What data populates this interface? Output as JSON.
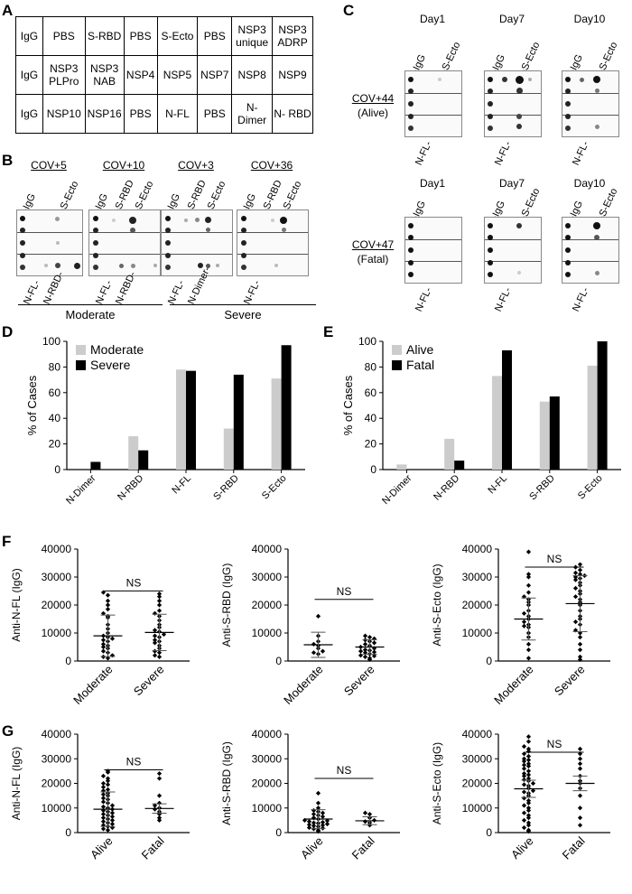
{
  "panels": {
    "a": "A",
    "b": "B",
    "c": "C",
    "d": "D",
    "e": "E",
    "f": "F",
    "g": "G"
  },
  "table_a": {
    "rows": [
      [
        "IgG",
        "PBS",
        "S-RBD",
        "PBS",
        "S-Ecto",
        "PBS",
        "NSP3 unique",
        "NSP3 ADRP"
      ],
      [
        "IgG",
        "NSP3 PLPro",
        "NSP3 NAB",
        "NSP4",
        "NSP5",
        "NSP7",
        "NSP8",
        "NSP9"
      ],
      [
        "IgG",
        "NSP10",
        "NSP16",
        "PBS",
        "N-FL",
        "PBS",
        "N- Dimer",
        "N- RBD"
      ]
    ]
  },
  "panel_b": {
    "blots": [
      {
        "title": "COV+5",
        "top_labels": [
          "-IgG",
          "-S-Ecto"
        ],
        "bottom_labels": [
          "N-FL-",
          "N-RBD-"
        ]
      },
      {
        "title": "COV+10",
        "top_labels": [
          "-IgG",
          "-S-RBD",
          "-S-Ecto"
        ],
        "bottom_labels": [
          "N-FL-",
          "N-RBD-"
        ]
      },
      {
        "title": "COV+3",
        "top_labels": [
          "-IgG",
          "-S-RBD",
          "-S-Ecto"
        ],
        "bottom_labels": [
          "N-FL-",
          "N-Dimer-"
        ]
      },
      {
        "title": "COV+36",
        "top_labels": [
          "-IgG",
          "-S-RBD",
          "-S-Ecto"
        ],
        "bottom_labels": [
          "N-FL-"
        ]
      }
    ],
    "groups": [
      "Moderate",
      "Severe"
    ]
  },
  "panel_c": {
    "days": [
      "Day1",
      "Day7",
      "Day10"
    ],
    "patients": [
      {
        "name": "COV+44",
        "status": "(Alive)",
        "top_labels": [
          [
            "-IgG",
            "-S-Ecto"
          ],
          [
            "-IgG",
            "-S-Ecto"
          ],
          [
            "-IgG",
            "-S-Ecto"
          ]
        ],
        "bottom_label": "N-FL-"
      },
      {
        "name": "COV+47",
        "status": "(Fatal)",
        "top_labels": [
          [
            "-IgG"
          ],
          [
            "-IgG",
            "-S-Ecto"
          ],
          [
            "-IgG",
            "-S-Ecto"
          ]
        ],
        "bottom_label": "N-FL-"
      }
    ]
  },
  "chart_data": [
    {
      "id": "D",
      "type": "bar",
      "categories": [
        "N-Dimer",
        "N-RBD",
        "N-FL",
        "S-RBD",
        "S-Ecto"
      ],
      "series": [
        {
          "name": "Moderate",
          "values": [
            0,
            26,
            78,
            32,
            71
          ],
          "color": "#cccccc"
        },
        {
          "name": "Severe",
          "values": [
            6,
            15,
            77,
            74,
            97
          ],
          "color": "#000000"
        }
      ],
      "ylabel": "% of Cases",
      "ylim": [
        0,
        100
      ],
      "yticks": [
        0,
        20,
        40,
        60,
        80,
        100
      ],
      "legend": "top-left"
    },
    {
      "id": "E",
      "type": "bar",
      "categories": [
        "N-Dimer",
        "N-RBD",
        "N-FL",
        "S-RBD",
        "S-Ecto"
      ],
      "series": [
        {
          "name": "Alive",
          "values": [
            4,
            24,
            73,
            53,
            81
          ],
          "color": "#cccccc"
        },
        {
          "name": "Fatal",
          "values": [
            0,
            7,
            93,
            57,
            100
          ],
          "color": "#000000"
        }
      ],
      "ylabel": "% of Cases",
      "ylim": [
        0,
        100
      ],
      "yticks": [
        0,
        20,
        40,
        60,
        80,
        100
      ],
      "legend": "top-left"
    },
    {
      "id": "F1",
      "type": "scatter",
      "ylabel": "Anti-N-FL (IgG)",
      "categories": [
        "Moderate",
        "Severe"
      ],
      "ylim": [
        0,
        40000
      ],
      "yticks": [
        0,
        10000,
        20000,
        30000,
        40000
      ],
      "annotation": "NS",
      "groups": [
        {
          "values": [
            24500,
            23500,
            21500,
            20000,
            18500,
            17000,
            16000,
            15500,
            13000,
            11500,
            10000,
            9000,
            8500,
            8000,
            7500,
            7000,
            6000,
            5500,
            5000,
            4500,
            3500,
            3000,
            2000,
            1500,
            1000
          ],
          "mean": 9000,
          "sd": 7400
        },
        {
          "values": [
            24000,
            23000,
            21500,
            20000,
            18000,
            17000,
            16000,
            14500,
            13000,
            12000,
            11000,
            10500,
            9500,
            9000,
            8500,
            7500,
            7000,
            6500,
            5500,
            4500,
            3500,
            3000,
            2000,
            1500
          ],
          "mean": 10200,
          "sd": 6500
        }
      ]
    },
    {
      "id": "F2",
      "type": "scatter",
      "ylabel": "Anti-S-RBD (IgG)",
      "categories": [
        "Moderate",
        "Severe"
      ],
      "ylim": [
        0,
        40000
      ],
      "yticks": [
        0,
        10000,
        20000,
        30000,
        40000
      ],
      "annotation": "NS",
      "groups": [
        {
          "values": [
            16000,
            9000,
            7000,
            6000,
            5500,
            4500,
            3500,
            3000,
            2500
          ],
          "mean": 5800,
          "sd": 4500
        },
        {
          "values": [
            9000,
            8500,
            8000,
            7500,
            7000,
            6500,
            6000,
            5500,
            5000,
            4500,
            4000,
            3800,
            3500,
            3200,
            3000,
            2500,
            2000,
            1800,
            1500,
            1000,
            500
          ],
          "mean": 5000,
          "sd": 2600
        }
      ]
    },
    {
      "id": "F3",
      "type": "scatter",
      "ylabel": "Anti-S-Ecto (IgG)",
      "categories": [
        "Moderate",
        "Severe"
      ],
      "ylim": [
        0,
        40000
      ],
      "yticks": [
        0,
        10000,
        20000,
        30000,
        40000
      ],
      "annotation": "NS",
      "groups": [
        {
          "values": [
            39000,
            31000,
            30000,
            27000,
            24500,
            23000,
            22000,
            21000,
            20000,
            18000,
            17000,
            16000,
            15000,
            14000,
            13000,
            12500,
            12000,
            10000,
            8500,
            6000,
            4000,
            1000
          ],
          "mean": 15000,
          "sd": 7500
        },
        {
          "values": [
            34500,
            33500,
            32500,
            31500,
            31000,
            30500,
            30000,
            29500,
            29000,
            28000,
            27000,
            26000,
            25000,
            24000,
            23000,
            22000,
            21000,
            20000,
            18000,
            16000,
            15000,
            14000,
            13000,
            11000,
            10000,
            8500,
            6000,
            4000,
            1500,
            500
          ],
          "mean": 20500,
          "sd": 10000
        }
      ]
    },
    {
      "id": "G1",
      "type": "scatter",
      "ylabel": "Anti-N-FL (IgG)",
      "categories": [
        "Alive",
        "Fatal"
      ],
      "ylim": [
        0,
        40000
      ],
      "yticks": [
        0,
        10000,
        20000,
        30000,
        40000
      ],
      "annotation": "NS",
      "groups": [
        {
          "values": [
            25000,
            24500,
            23000,
            22000,
            21000,
            20000,
            19500,
            18500,
            17500,
            17000,
            16000,
            15500,
            15000,
            14000,
            13500,
            12500,
            12000,
            11000,
            10500,
            10000,
            9500,
            9000,
            8500,
            8000,
            7500,
            7000,
            6500,
            6000,
            5500,
            5000,
            4500,
            4000,
            3500,
            3000,
            2500,
            2000,
            1500,
            1000
          ],
          "mean": 9500,
          "sd": 7000
        },
        {
          "values": [
            24000,
            22000,
            15000,
            12000,
            11000,
            10000,
            9500,
            8500,
            7500,
            6000,
            5000
          ],
          "mean": 9800,
          "sd": 1900
        }
      ]
    },
    {
      "id": "G2",
      "type": "scatter",
      "ylabel": "Anti-S-RBD (IgG)",
      "categories": [
        "Alive",
        "Fatal"
      ],
      "ylim": [
        0,
        40000
      ],
      "yticks": [
        0,
        10000,
        20000,
        30000,
        40000
      ],
      "annotation": "NS",
      "groups": [
        {
          "values": [
            16000,
            12000,
            10000,
            9000,
            8500,
            8000,
            7500,
            7000,
            6500,
            6000,
            5500,
            5000,
            4800,
            4500,
            4200,
            4000,
            3800,
            3500,
            3200,
            3000,
            2800,
            2500,
            2000,
            1800,
            1500,
            1000,
            500
          ],
          "mean": 5500,
          "sd": 3800
        },
        {
          "values": [
            8000,
            7500,
            6000,
            5000,
            4500,
            4000,
            3000
          ],
          "mean": 4800,
          "sd": 1600
        }
      ]
    },
    {
      "id": "G3",
      "type": "scatter",
      "ylabel": "Anti-S-Ecto (IgG)",
      "categories": [
        "Alive",
        "Fatal"
      ],
      "ylim": [
        0,
        40000
      ],
      "yticks": [
        0,
        10000,
        20000,
        30000,
        40000
      ],
      "annotation": "NS",
      "groups": [
        {
          "values": [
            39000,
            37000,
            35000,
            34000,
            33000,
            32000,
            31000,
            30000,
            29500,
            29000,
            28000,
            27500,
            27000,
            26000,
            25000,
            24000,
            23500,
            23000,
            22000,
            21500,
            21000,
            20000,
            19500,
            19000,
            18000,
            17000,
            16500,
            16000,
            15000,
            14000,
            13000,
            12000,
            11000,
            10000,
            9000,
            8000,
            7000,
            6000,
            5000,
            4000,
            3000,
            2000,
            1000,
            500
          ],
          "mean": 17800,
          "sd": 3500
        },
        {
          "values": [
            34000,
            32000,
            30000,
            28000,
            26000,
            23000,
            21000,
            20000,
            18000,
            15000,
            10000,
            6000,
            3000
          ],
          "mean": 20000,
          "sd": 3000
        }
      ]
    }
  ]
}
